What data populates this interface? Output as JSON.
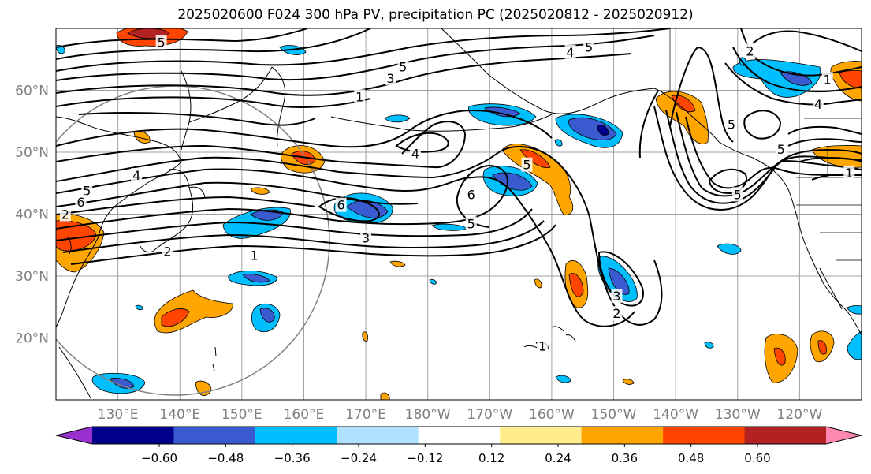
{
  "title": "2025020600 F024 300 hPa PV, precipitation PC (2025020812 - 2025020912)",
  "map": {
    "lat_labels": [
      "60°N",
      "50°N",
      "40°N",
      "30°N",
      "20°N"
    ],
    "lat_values": [
      60,
      50,
      40,
      30,
      20
    ],
    "lon_labels": [
      "130°E",
      "140°E",
      "150°E",
      "160°E",
      "170°E",
      "180°W",
      "170°W",
      "160°W",
      "150°W",
      "140°W",
      "130°W",
      "120°W"
    ],
    "lon_values": [
      130,
      140,
      150,
      160,
      170,
      180,
      190,
      200,
      210,
      220,
      230,
      240
    ],
    "lon_range": [
      120,
      250
    ],
    "lat_range": [
      10,
      70
    ],
    "gridlines": true,
    "grid_color": "#a0a0a0",
    "land_outline_color": "#000000",
    "reference_circle_color": "#808080"
  },
  "contour_labels": [
    {
      "text": "5",
      "lon": 137,
      "lat": 67.8
    },
    {
      "text": "5",
      "lon": 176,
      "lat": 63.8
    },
    {
      "text": "3",
      "lon": 174,
      "lat": 62.0
    },
    {
      "text": "1",
      "lon": 169,
      "lat": 59.0
    },
    {
      "text": "4",
      "lon": 203,
      "lat": 66.2
    },
    {
      "text": "5",
      "lon": 206,
      "lat": 67.0
    },
    {
      "text": "2",
      "lon": 232,
      "lat": 66.4
    },
    {
      "text": "1",
      "lon": 244.5,
      "lat": 61.8
    },
    {
      "text": "4",
      "lon": 243,
      "lat": 57.8
    },
    {
      "text": "5",
      "lon": 229,
      "lat": 54.5
    },
    {
      "text": "5",
      "lon": 237,
      "lat": 50.5
    },
    {
      "text": "1",
      "lon": 248,
      "lat": 46.7
    },
    {
      "text": "5",
      "lon": 230,
      "lat": 43.2
    },
    {
      "text": "4",
      "lon": 178,
      "lat": 49.8
    },
    {
      "text": "5",
      "lon": 196,
      "lat": 48.0
    },
    {
      "text": "6",
      "lon": 187,
      "lat": 43.2
    },
    {
      "text": "5",
      "lon": 187,
      "lat": 38.5
    },
    {
      "text": "6",
      "lon": 166,
      "lat": 41.5
    },
    {
      "text": "3",
      "lon": 170,
      "lat": 36.2
    },
    {
      "text": "1",
      "lon": 152,
      "lat": 33.4
    },
    {
      "text": "2",
      "lon": 138,
      "lat": 34.0
    },
    {
      "text": "4",
      "lon": 133,
      "lat": 46.3
    },
    {
      "text": "5",
      "lon": 125,
      "lat": 43.8
    },
    {
      "text": "6",
      "lon": 124,
      "lat": 42.0
    },
    {
      "text": "2",
      "lon": 121.5,
      "lat": 40.0
    },
    {
      "text": "3",
      "lon": 210.5,
      "lat": 26.8
    },
    {
      "text": "2",
      "lon": 210.5,
      "lat": 24.0
    },
    {
      "text": "1",
      "lon": 198.5,
      "lat": 18.7
    }
  ],
  "colorbar": {
    "tick_labels": [
      "−0.60",
      "−0.48",
      "−0.36",
      "−0.24",
      "−0.12",
      "0.12",
      "0.24",
      "0.36",
      "0.48",
      "0.60"
    ],
    "colors": [
      "#9b30d0",
      "#00008b",
      "#3a5bcf",
      "#00bfff",
      "#b0e2ff",
      "#ffffff",
      "#ffec8b",
      "#ffa500",
      "#ff4500",
      "#b22222",
      "#ff88b0"
    ]
  }
}
